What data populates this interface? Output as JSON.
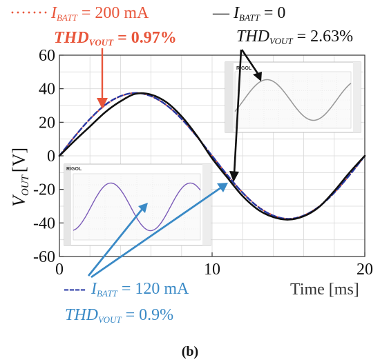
{
  "chart_data": {
    "type": "line",
    "caption": "(b)",
    "xlabel": "Time [ms]",
    "ylabel_main": "V",
    "ylabel_sub": "OUT",
    "ylabel_unit": "[V]",
    "xlim": [
      0,
      20
    ],
    "ylim": [
      -60,
      60
    ],
    "xticks": [
      {
        "value": 0,
        "label": "0"
      },
      {
        "value": 10,
        "label": "10"
      },
      {
        "value": 20,
        "label": "20"
      }
    ],
    "yticks": [
      {
        "value": 60,
        "label": "60"
      },
      {
        "value": 40,
        "label": "40"
      },
      {
        "value": 20,
        "label": "20"
      },
      {
        "value": 0,
        "label": "0"
      },
      {
        "value": -20,
        "label": "-20"
      },
      {
        "value": -40,
        "label": "-40"
      },
      {
        "value": -60,
        "label": "-60"
      }
    ],
    "grid": true,
    "x": [
      0,
      1,
      2,
      3,
      4,
      5,
      6,
      7,
      8,
      9,
      10,
      11,
      12,
      13,
      14,
      15,
      16,
      17,
      18,
      19,
      20
    ],
    "series": [
      {
        "key": "i200",
        "color": "#e8553a",
        "dash": "2,3",
        "width": 2.2,
        "values": [
          0,
          11.5,
          21.9,
          30.2,
          35.5,
          37.5,
          35.5,
          30.2,
          21.9,
          11.5,
          0,
          -11.5,
          -21.9,
          -30.2,
          -35.5,
          -37.5,
          -35.5,
          -30.2,
          -21.9,
          -11.5,
          0
        ]
      },
      {
        "key": "i120",
        "color": "#2a3aa6",
        "dash": "7,4",
        "width": 2.4,
        "values": [
          0,
          11.5,
          22.0,
          30.4,
          35.6,
          37.5,
          35.6,
          30.3,
          22.0,
          11.5,
          0,
          -11.5,
          -22.0,
          -30.4,
          -35.6,
          -37.6,
          -35.6,
          -30.3,
          -22.0,
          -11.5,
          0
        ]
      },
      {
        "key": "i0",
        "color": "#111111",
        "dash": "",
        "width": 2.6,
        "values": [
          0,
          9.0,
          17.5,
          26.0,
          32.5,
          37.0,
          36.5,
          32.0,
          23.5,
          12.0,
          -1.5,
          -13.0,
          -24.0,
          -32.0,
          -36.5,
          -38.0,
          -36.0,
          -30.5,
          -21.0,
          -10.0,
          0
        ]
      }
    ],
    "annotations": {
      "i200": {
        "legend_symbol": "·······",
        "label_main": "I",
        "label_sub": "BATT",
        "label_value": " = 200 mA",
        "thd_main": "THD",
        "thd_sub": "VOUT",
        "thd_value": " = 0.97%",
        "color": "#e8553a"
      },
      "i0": {
        "legend_symbol": "—",
        "label_main": "I",
        "label_sub": "BATT",
        "label_value": " = 0",
        "thd_main": "THD",
        "thd_sub": "VOUT",
        "thd_value": " = 2.63%",
        "color": "#111111"
      },
      "i120": {
        "legend_symbol": "----",
        "label_main": "I",
        "label_sub": "BATT",
        "label_value": " = 120 mA",
        "thd_main": "THD",
        "thd_sub": "VOUT",
        "thd_value": " = 0.9%",
        "color": "#3a8ac6"
      }
    },
    "insets": [
      {
        "key": "inset-top",
        "brand": "RIGOL",
        "trace_color": "#9a9a9a"
      },
      {
        "key": "inset-bottom",
        "brand": "RIGOL",
        "trace_color": "#7b5bb8"
      }
    ]
  }
}
